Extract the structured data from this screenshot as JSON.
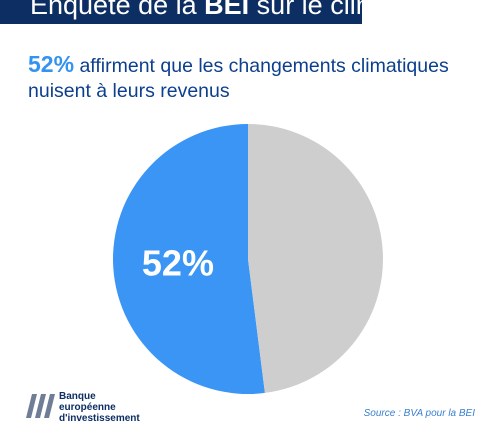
{
  "header": {
    "title_prefix": "Enquête de la ",
    "title_bold": "BEI",
    "title_suffix": " sur le climat"
  },
  "headline": {
    "percent": "52%",
    "text_line1": " affirment que les changements climatiques",
    "text_line2": "nuisent à leurs revenus"
  },
  "chart_data": {
    "type": "pie",
    "categories": [
      "",
      ""
    ],
    "values": [
      52,
      48
    ],
    "data_labels": [
      "52%",
      ""
    ],
    "colors": [
      "#3b95f5",
      "#cecece"
    ]
  },
  "footer": {
    "logo_line1": "Banque",
    "logo_line2": "européenne",
    "logo_line3": "d'investissement",
    "source": "Source : BVA pour la BEI"
  }
}
